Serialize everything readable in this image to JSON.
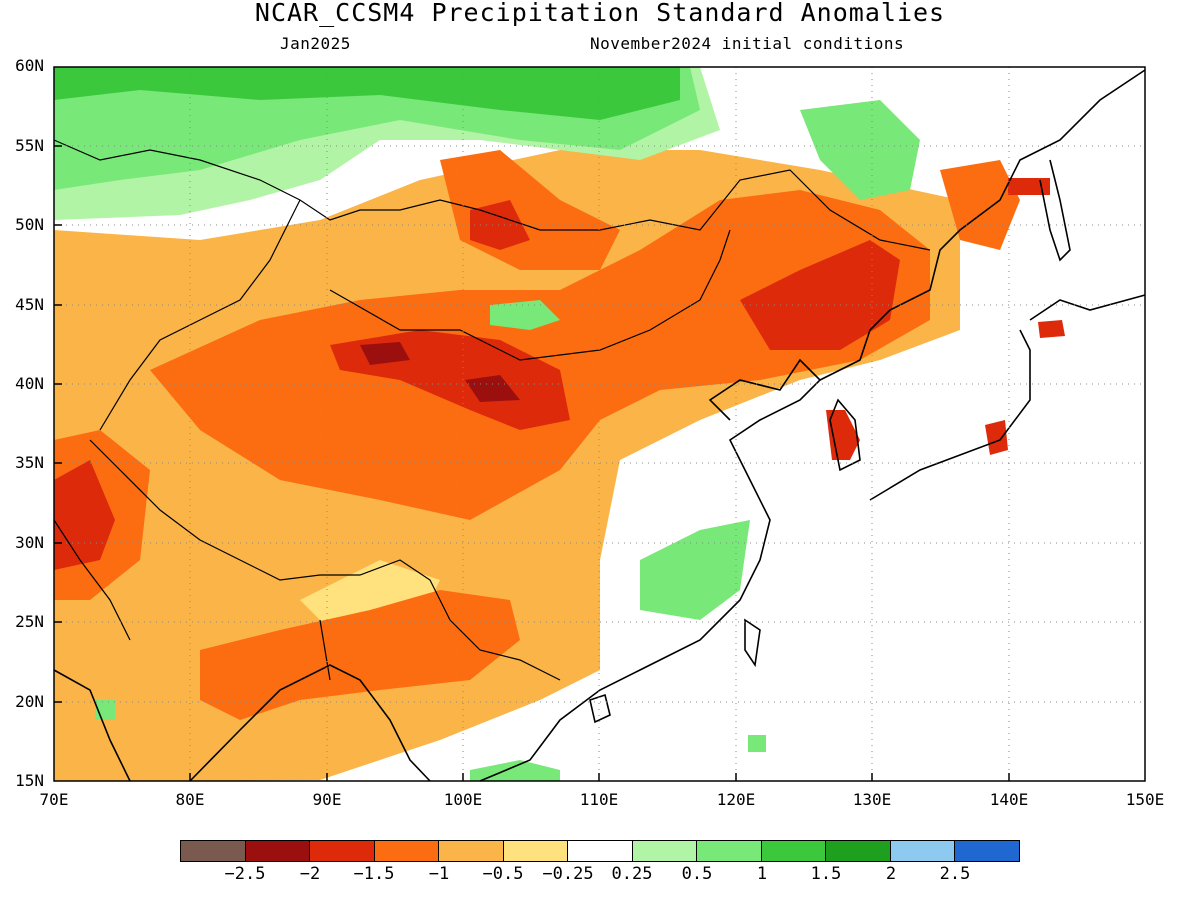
{
  "title": "NCAR_CCSM4 Precipitation Standard Anomalies",
  "subtitle_left": "Jan2025",
  "subtitle_right": "November2024 initial conditions",
  "lat_labels": [
    "60N",
    "55N",
    "50N",
    "45N",
    "40N",
    "35N",
    "30N",
    "25N",
    "20N",
    "15N"
  ],
  "lon_labels": [
    "70E",
    "80E",
    "90E",
    "100E",
    "110E",
    "120E",
    "130E",
    "140E",
    "150E"
  ],
  "colorbar": {
    "colors": [
      "#7a5a4e",
      "#9c0f0f",
      "#dd2a0b",
      "#fb6d10",
      "#fbb448",
      "#ffe27d",
      "#ffffff",
      "#b2f4a5",
      "#78e878",
      "#3cc83c",
      "#1ea01e",
      "#8ec9f0",
      "#1f68d2"
    ],
    "labels": [
      "−2.5",
      "−2",
      "−1.5",
      "−1",
      "−0.5",
      "−0.25",
      "0.25",
      "0.5",
      "1",
      "1.5",
      "2",
      "2.5"
    ]
  }
}
